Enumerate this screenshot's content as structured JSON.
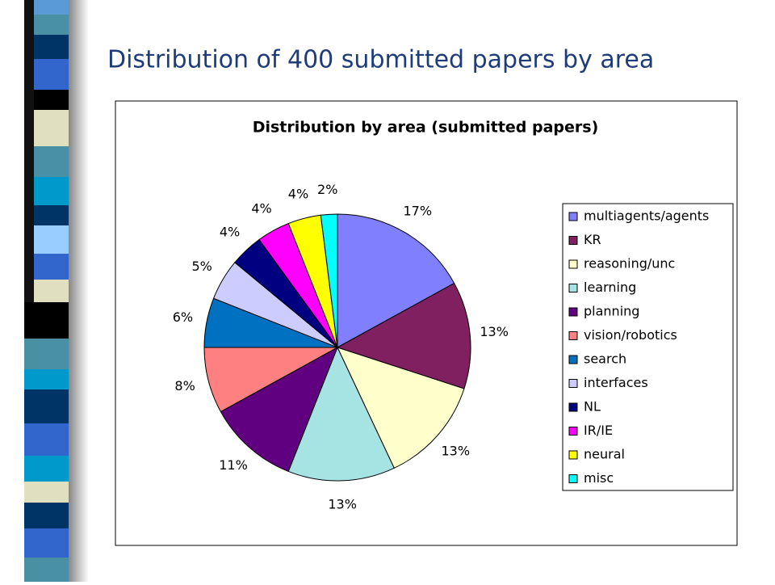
{
  "slide": {
    "title": "Distribution of 400 submitted papers by area"
  },
  "chart_data": {
    "type": "pie",
    "title": "Distribution by area (submitted papers)",
    "categories": [
      "multiagents/agents",
      "KR",
      "reasoning/unc",
      "learning",
      "planning",
      "vision/robotics",
      "search",
      "interfaces",
      "NL",
      "IR/IE",
      "neural",
      "misc"
    ],
    "values": [
      17,
      13,
      13,
      13,
      11,
      8,
      6,
      5,
      4,
      4,
      4,
      2
    ],
    "value_labels": [
      "17%",
      "13%",
      "13%",
      "13%",
      "11%",
      "8%",
      "6%",
      "5%",
      "4%",
      "4%",
      "4%",
      "2%"
    ],
    "colors": [
      "#8080ff",
      "#802060",
      "#ffffcc",
      "#a6e3e3",
      "#600080",
      "#ff8080",
      "#0070c0",
      "#ccccff",
      "#000080",
      "#ff00ff",
      "#ffff00",
      "#00ffff"
    ],
    "legend": "right"
  }
}
